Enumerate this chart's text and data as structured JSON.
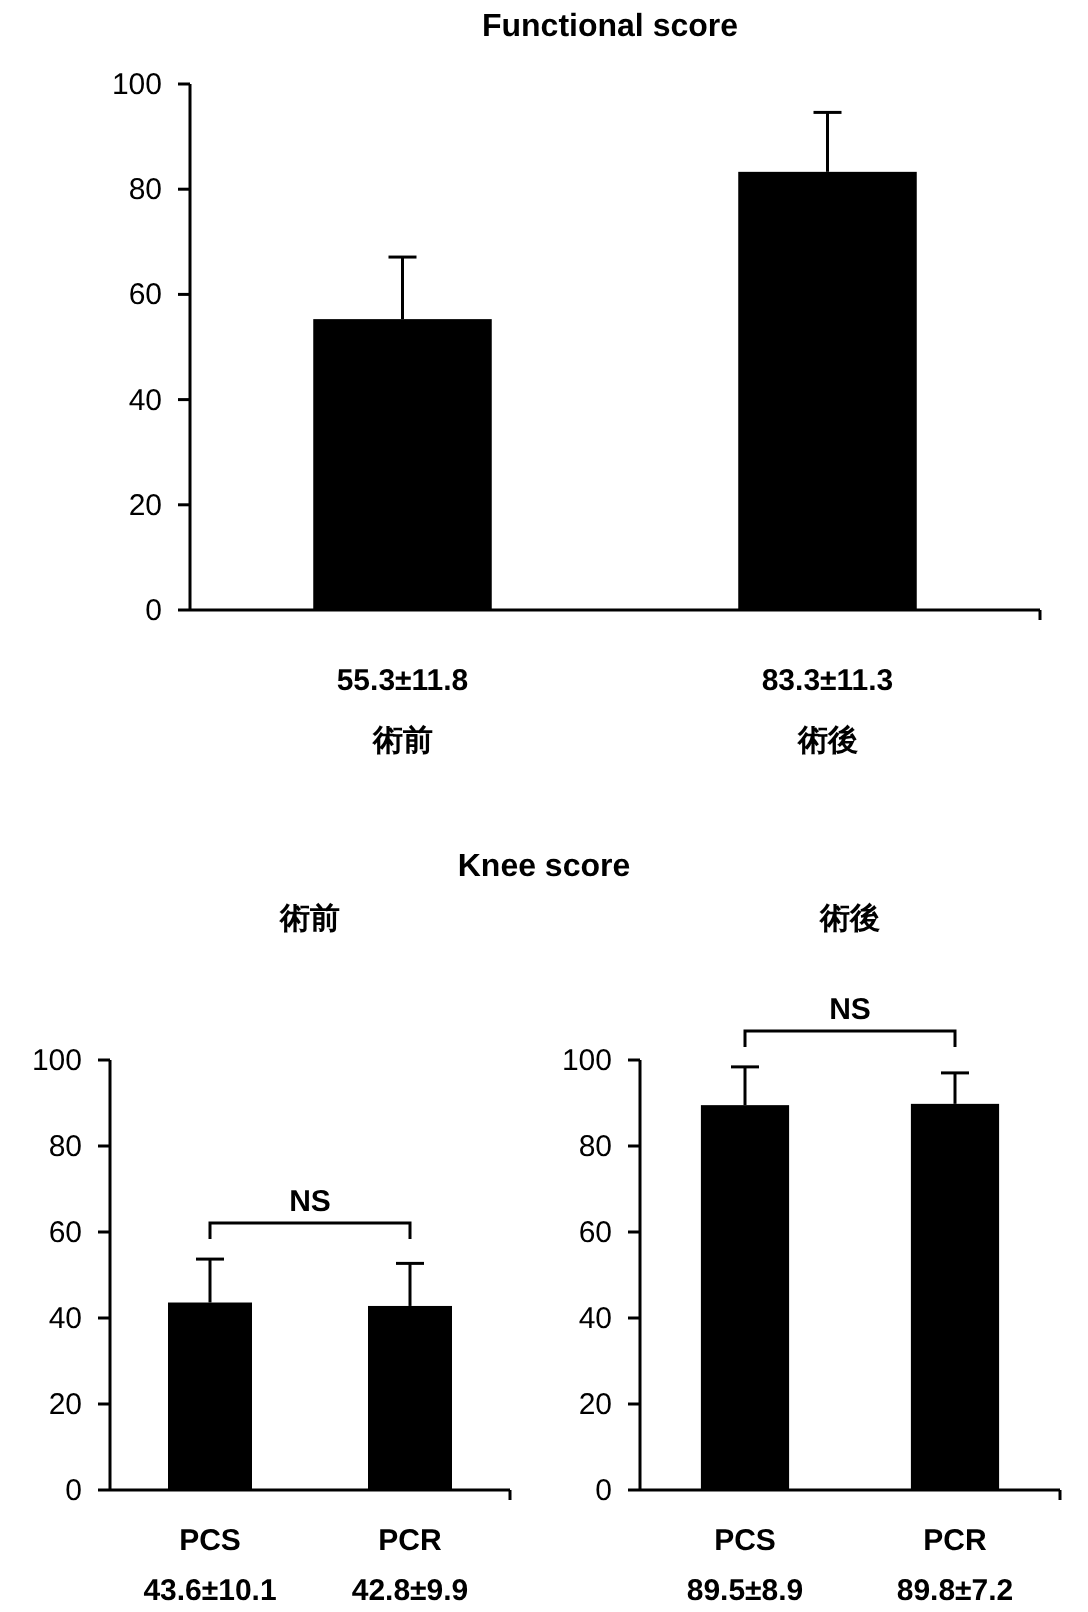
{
  "chart_data": [
    {
      "type": "bar",
      "title": "Functional score",
      "categories": [
        "術前",
        "術後"
      ],
      "values": [
        55.3,
        83.3
      ],
      "value_labels": [
        "55.3±11.8",
        "83.3±11.3"
      ],
      "errors": [
        [
          55.3,
          67.1
        ],
        [
          83.3,
          94.6
        ]
      ],
      "color": "#000000",
      "ylim": [
        0,
        100
      ],
      "yticks": [
        0,
        20,
        40,
        60,
        80,
        100
      ]
    },
    {
      "type": "bar",
      "title": "Knee score",
      "subtitle": "術前",
      "categories": [
        "PCS",
        "PCR"
      ],
      "values": [
        43.6,
        42.8
      ],
      "value_labels": [
        "43.6±10.1",
        "42.8±9.9"
      ],
      "errors": [
        [
          43.6,
          53.7
        ],
        [
          42.8,
          52.7
        ]
      ],
      "color": "#000000",
      "ylim": [
        0,
        100
      ],
      "yticks": [
        0,
        20,
        40,
        60,
        80,
        100
      ],
      "annotations": [
        "NS"
      ]
    },
    {
      "type": "bar",
      "subtitle": "術後",
      "categories": [
        "PCS",
        "PCR"
      ],
      "values": [
        89.5,
        89.8
      ],
      "value_labels": [
        "89.5±8.9",
        "89.8±7.2"
      ],
      "errors": [
        [
          89.5,
          98.4
        ],
        [
          89.8,
          97.0
        ]
      ],
      "color": "#000000",
      "ylim": [
        0,
        100
      ],
      "yticks": [
        0,
        20,
        40,
        60,
        80,
        100
      ],
      "annotations": [
        "NS"
      ]
    }
  ]
}
